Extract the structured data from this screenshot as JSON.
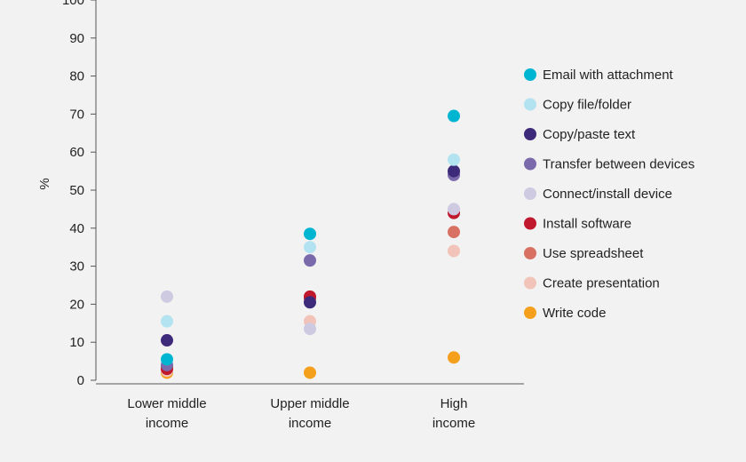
{
  "chart_data": {
    "type": "scatter",
    "title": "",
    "xlabel": "",
    "ylabel": "%",
    "ylim": [
      0,
      100
    ],
    "yticks": [
      "0",
      "10",
      "20",
      "30",
      "40",
      "50",
      "60",
      "70",
      "80",
      "90",
      "100"
    ],
    "categories": [
      [
        "Lower middle",
        "income"
      ],
      [
        "Upper middle",
        "income"
      ],
      [
        "High",
        "income"
      ]
    ],
    "legend_position": "right",
    "grid": false,
    "series": [
      {
        "name": "Email with attachment",
        "color": "#00b5d1",
        "values": [
          5.5,
          38.5,
          69.5
        ]
      },
      {
        "name": "Copy file/folder",
        "color": "#b3e3f0",
        "values": [
          15.5,
          35,
          58
        ]
      },
      {
        "name": "Copy/paste text",
        "color": "#3d2a7a",
        "values": [
          10.5,
          20.5,
          55
        ]
      },
      {
        "name": "Transfer between devices",
        "color": "#7a6aab",
        "values": [
          4,
          31.5,
          54
        ]
      },
      {
        "name": "Connect/install device",
        "color": "#cdcae2",
        "values": [
          22,
          13.5,
          45
        ]
      },
      {
        "name": "Install software",
        "color": "#c0182c",
        "values": [
          3,
          22,
          44
        ]
      },
      {
        "name": "Use spreadsheet",
        "color": "#d97064",
        "values": [
          3.5,
          21.5,
          39
        ]
      },
      {
        "name": "Create presentation",
        "color": "#f2c3b8",
        "values": [
          2.5,
          15.5,
          34
        ]
      },
      {
        "name": "Write code",
        "color": "#f5a01c",
        "values": [
          2,
          2,
          6
        ]
      }
    ]
  }
}
